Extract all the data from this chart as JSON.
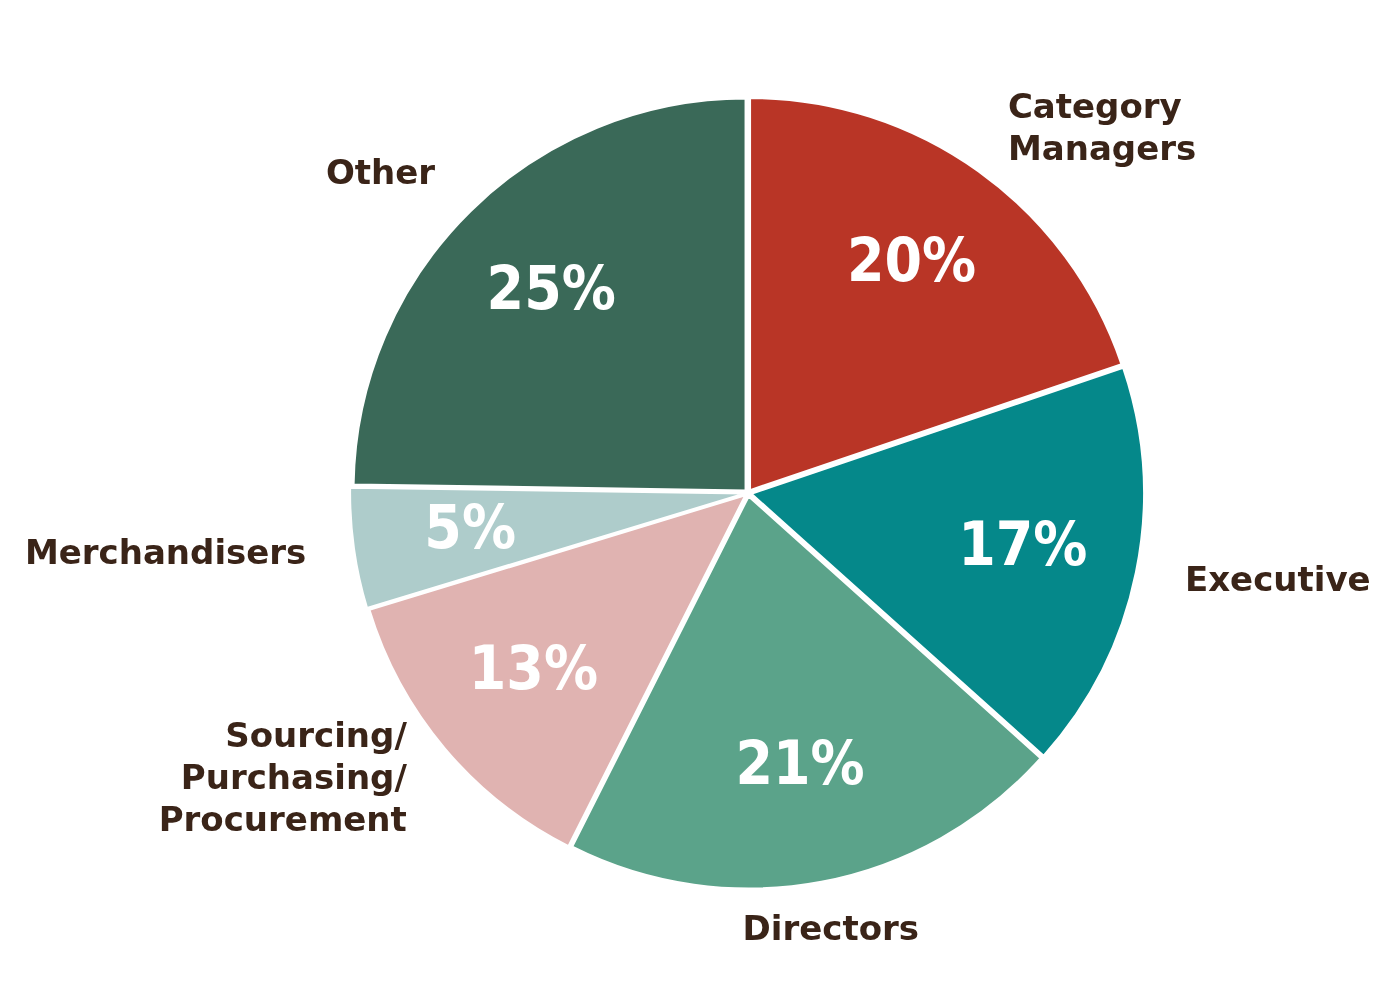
{
  "chart_data": {
    "type": "pie",
    "categories": [
      "Category Managers",
      "Executive",
      "Directors",
      "Sourcing/Purchasing/Procurement",
      "Merchandisers",
      "Other"
    ],
    "values": [
      20,
      17,
      21,
      13,
      5,
      25
    ],
    "colors": [
      "#b93526",
      "#05888a",
      "#5ba38a",
      "#e0b3b1",
      "#aecccb",
      "#3a6958"
    ],
    "value_labels": [
      "20%",
      "17%",
      "21%",
      "13%",
      "5%",
      "25%"
    ],
    "legend": false
  }
}
